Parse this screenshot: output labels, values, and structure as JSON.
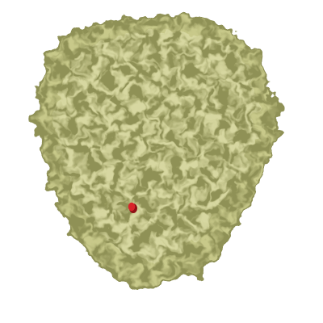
{
  "scene": {
    "background_color": "#ffffff",
    "density_color": "#c8c98a",
    "density_shadow_color": "#8f9156",
    "density_highlight_color": "#e4e4b4",
    "marker_color": "#d8242a",
    "marker_shadow_color": "#8e1014"
  }
}
